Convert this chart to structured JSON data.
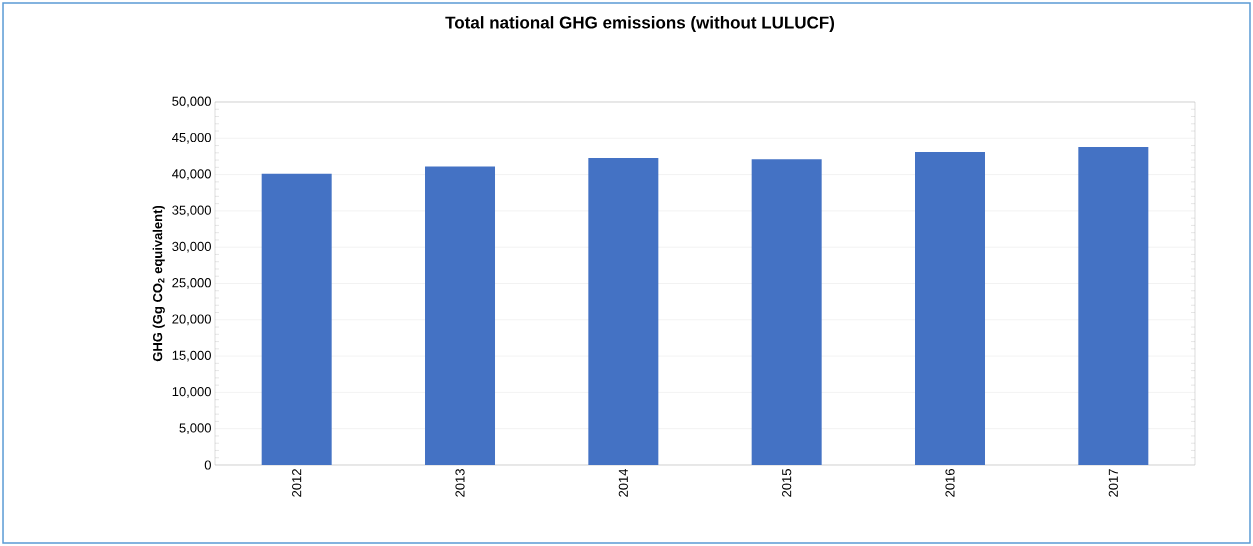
{
  "chart_data": {
    "type": "bar",
    "title": "Total national GHG emissions (without LULUCF)",
    "ylabel": "GHG (Gg CO$_{2}$ equivalent)",
    "categories": [
      "2012",
      "2013",
      "2014",
      "2015",
      "2016",
      "2017"
    ],
    "values": [
      40100,
      41100,
      42300,
      42100,
      43100,
      43800
    ],
    "color": "#4472c4",
    "ylim": [
      0,
      50000
    ],
    "yticks": [
      {
        "value": 0,
        "label": "0"
      },
      {
        "value": 5000,
        "label": "5,000"
      },
      {
        "value": 10000,
        "label": "10,000"
      },
      {
        "value": 15000,
        "label": "15,000"
      },
      {
        "value": 20000,
        "label": "20,000"
      },
      {
        "value": 25000,
        "label": "25,000"
      },
      {
        "value": 30000,
        "label": "30,000"
      },
      {
        "value": 35000,
        "label": "35,000"
      },
      {
        "value": 40000,
        "label": "40,000"
      },
      {
        "value": 45000,
        "label": "45,000"
      },
      {
        "value": 50000,
        "label": "50,000"
      }
    ],
    "grid": "y"
  }
}
